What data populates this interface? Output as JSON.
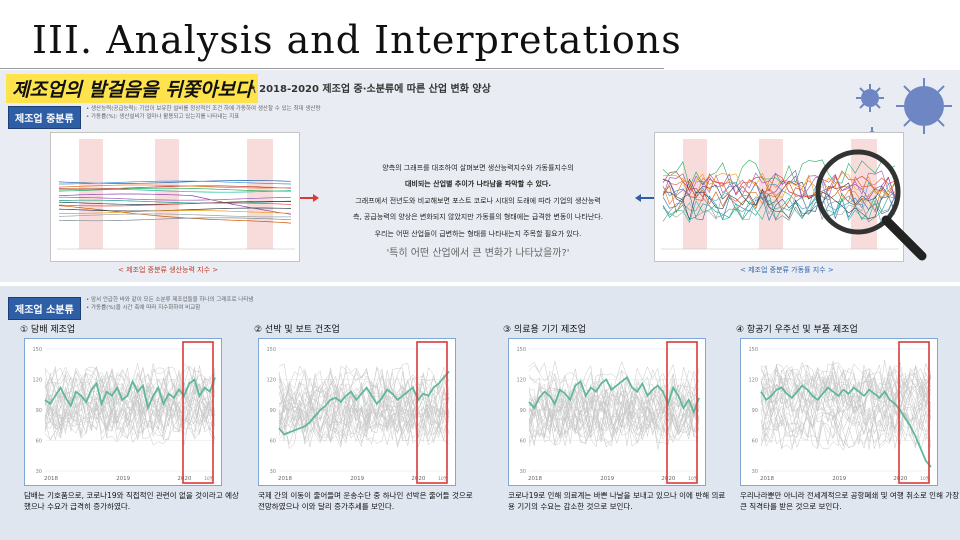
{
  "slide": {
    "title": "III. Analysis and Interpretations"
  },
  "header": {
    "banner": "제조업의 발걸음을 뒤쫓아보다",
    "subtitle": "\\ 2018-2020 제조업 중·소분류에 따른 산업 변화 양상"
  },
  "section_mid": {
    "tag": "제조업 중분류",
    "notes": [
      "• 생산능력(공급능력): 기업이 보유한 설비를 정상적인 조건 하에 가동하여 생산할 수 있는 최대 생산량",
      "• 가동률(%): 생산설비가 얼마나 활용되고 있는지를 나타내는 지표"
    ],
    "left_caption": "< 제조업 중분류 생산능력 지수 >",
    "right_caption": "< 제조업 중분류 가동률 지수 >"
  },
  "analysis": {
    "lines": [
      {
        "text": "양측의 그래프를 대조하여 살펴보면 생산능력지수와 가동률지수의",
        "bold": false
      },
      {
        "text": "대비되는 산업별 추이가 나타남을 파악할 수 있다.",
        "bold": true
      },
      {
        "text": "그래프에서 전년도와 비교해보면 포스트 코로나 시대의 도래에 따라 기업의 생산능력",
        "bold": false
      },
      {
        "text": "측, 공급능력의 양상은 변화되지 않았지만 가동률의 형태에는 급격한 변동이 나타난다.",
        "bold": false
      },
      {
        "text": "우리는 어떤 산업들이 급변하는 형태를 나타내는지 주목할 필요가 있다.",
        "bold": false
      }
    ],
    "question": "'특히 어떤 산업에서 큰 변화가 나타났을까?'"
  },
  "section_small": {
    "tag": "제조업 소분류",
    "notes": [
      "• 앞서 언급한 바와 같이 모든 소분류 제조업들을 하나의 그래프로 나타냄",
      "• 가동률(%)을 시간 축에 따라 지수화하여 비교함"
    ]
  },
  "cases": [
    {
      "title": "① 담배 제조업",
      "desc": "담배는 기호품으로, 코로나19와 직접적인 관련이 없을 것이라고 예상했으나 수요가 급격히 증가하였다.",
      "yticks": [
        "150",
        "120",
        "90",
        "60",
        "30"
      ],
      "xticks": [
        "2018",
        "2019",
        "2020"
      ],
      "end_label": "10월",
      "highlight": [
        100,
        96,
        104,
        112,
        102,
        94,
        108,
        104,
        98,
        110,
        116,
        96,
        108,
        104,
        112,
        100,
        104,
        118,
        108,
        114,
        92,
        104,
        112,
        96,
        106,
        102,
        110,
        104,
        116,
        120,
        104,
        112,
        108,
        122
      ]
    },
    {
      "title": "② 선박 및 보트 건조업",
      "desc": "국제 간의 이동이 줄어들며 운송수단 중 하나인 선박은 줄어들 것으로 전망하였으나 이와 달리 증가추세를 보인다.",
      "yticks": [
        "150",
        "120",
        "90",
        "60",
        "30"
      ],
      "xticks": [
        "2018",
        "2019",
        "2020"
      ],
      "end_label": "10월",
      "highlight": [
        72,
        66,
        68,
        70,
        72,
        74,
        78,
        84,
        90,
        94,
        100,
        102,
        98,
        104,
        108,
        100,
        106,
        112,
        104,
        96,
        102,
        110,
        106,
        100,
        104,
        108,
        112,
        100,
        106,
        104,
        112,
        116,
        122,
        128
      ]
    },
    {
      "title": "③ 의료용 기기 제조업",
      "desc": "코로나19로 인해 의료계는 바쁜 나날을 보내고 있으나 이에 반해 의료용 기기의 수요는 감소한 것으로 보인다.",
      "yticks": [
        "150",
        "120",
        "90",
        "60",
        "30"
      ],
      "xticks": [
        "2018",
        "2019",
        "2020"
      ],
      "end_label": "10월",
      "highlight": [
        98,
        92,
        102,
        108,
        104,
        96,
        110,
        106,
        100,
        114,
        118,
        104,
        112,
        108,
        116,
        120,
        110,
        114,
        118,
        122,
        112,
        108,
        116,
        104,
        110,
        114,
        108,
        96,
        112,
        104,
        92,
        100,
        88,
        102
      ]
    },
    {
      "title": "④ 항공기 우주선 및 부품 제조업",
      "desc": "우리나라뿐만 아니라 전세계적으로 공항폐쇄 및 여행 취소로 인해 가장 큰 직격타를 받은 것으로 보인다.",
      "yticks": [
        "150",
        "120",
        "90",
        "60",
        "30"
      ],
      "xticks": [
        "2018",
        "2019",
        "2020"
      ],
      "end_label": "10월",
      "highlight": [
        108,
        100,
        104,
        110,
        112,
        106,
        102,
        108,
        114,
        110,
        104,
        100,
        106,
        112,
        108,
        104,
        110,
        106,
        112,
        108,
        104,
        110,
        106,
        102,
        108,
        100,
        96,
        90,
        82,
        74,
        64,
        52,
        40,
        34
      ]
    }
  ],
  "icons": {
    "virus": "virus-icon",
    "magnifier": "magnifier-icon",
    "arrow_left": "arrow-left-icon",
    "arrow_right": "arrow-right-icon"
  },
  "colors": {
    "banner_bg": "#ffe34d",
    "tag_bg": "#2e5fa6",
    "highlight_line": "#5fb896",
    "box_red": "#d83a3a",
    "band_pink": "#f8dcdc"
  }
}
